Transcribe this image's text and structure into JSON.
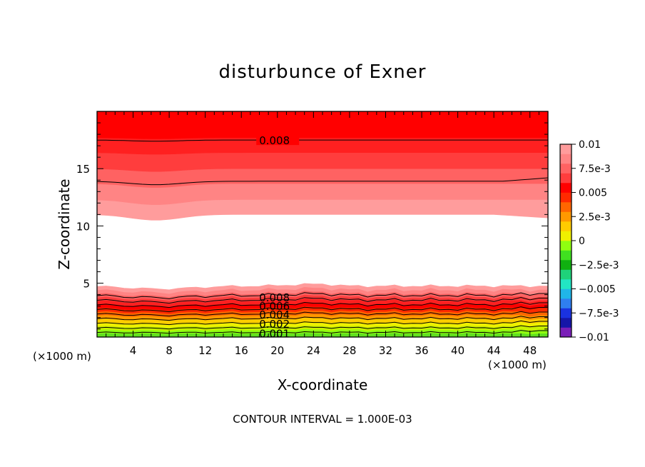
{
  "chart_data": {
    "type": "contour",
    "title": "disturbunce of Exner",
    "xlabel": "X-coordinate",
    "ylabel": "Z-coordinate",
    "x_unit": "(×1000 m)",
    "y_unit": "(×1000 m)",
    "xlim": [
      0,
      50
    ],
    "ylim": [
      0.3,
      20
    ],
    "x_ticks": [
      "4",
      "8",
      "12",
      "16",
      "20",
      "24",
      "28",
      "32",
      "36",
      "40",
      "44",
      "48"
    ],
    "y_ticks": [
      "5",
      "10",
      "15"
    ],
    "footer": "CONTOUR INTERVAL = 1.000E-03",
    "contour_interval": 0.001,
    "contour_labels": [
      "0.008",
      "0.008",
      "0.006",
      "0.004",
      "0.002",
      "0.001"
    ],
    "colorbar": {
      "ticks": [
        "0.01",
        "7.5e-3",
        "0.005",
        "2.5e-3",
        "0",
        "−2.5e-3",
        "−0.005",
        "−7.5e-3",
        "−0.01"
      ],
      "min": -0.01,
      "max": 0.01,
      "colors": [
        "#7a1fb8",
        "#1616a8",
        "#1a32e0",
        "#2f7ff0",
        "#20b6e8",
        "#22e6c4",
        "#1fd27a",
        "#10b010",
        "#40e020",
        "#90ff10",
        "#f0f000",
        "#ffcc00",
        "#ff9900",
        "#ff6600",
        "#ff2a00",
        "#ff0000",
        "#ff3d3d",
        "#ff6262",
        "#ff8484",
        "#ff9c9c"
      ]
    },
    "upper_band_colors": [
      "#ff9c9c",
      "#ff8484",
      "#ff6262",
      "#ff3d3d",
      "#ff2020",
      "#ff0000"
    ],
    "lower_band_colors": [
      "#60e020",
      "#90ff10",
      "#c8f000",
      "#f0f000",
      "#ffcc00",
      "#ff9900",
      "#ff6600",
      "#ff2a00",
      "#ff0000",
      "#ff2020",
      "#ff3d3d",
      "#ff6262",
      "#ff8484",
      "#ff9c9c"
    ]
  }
}
